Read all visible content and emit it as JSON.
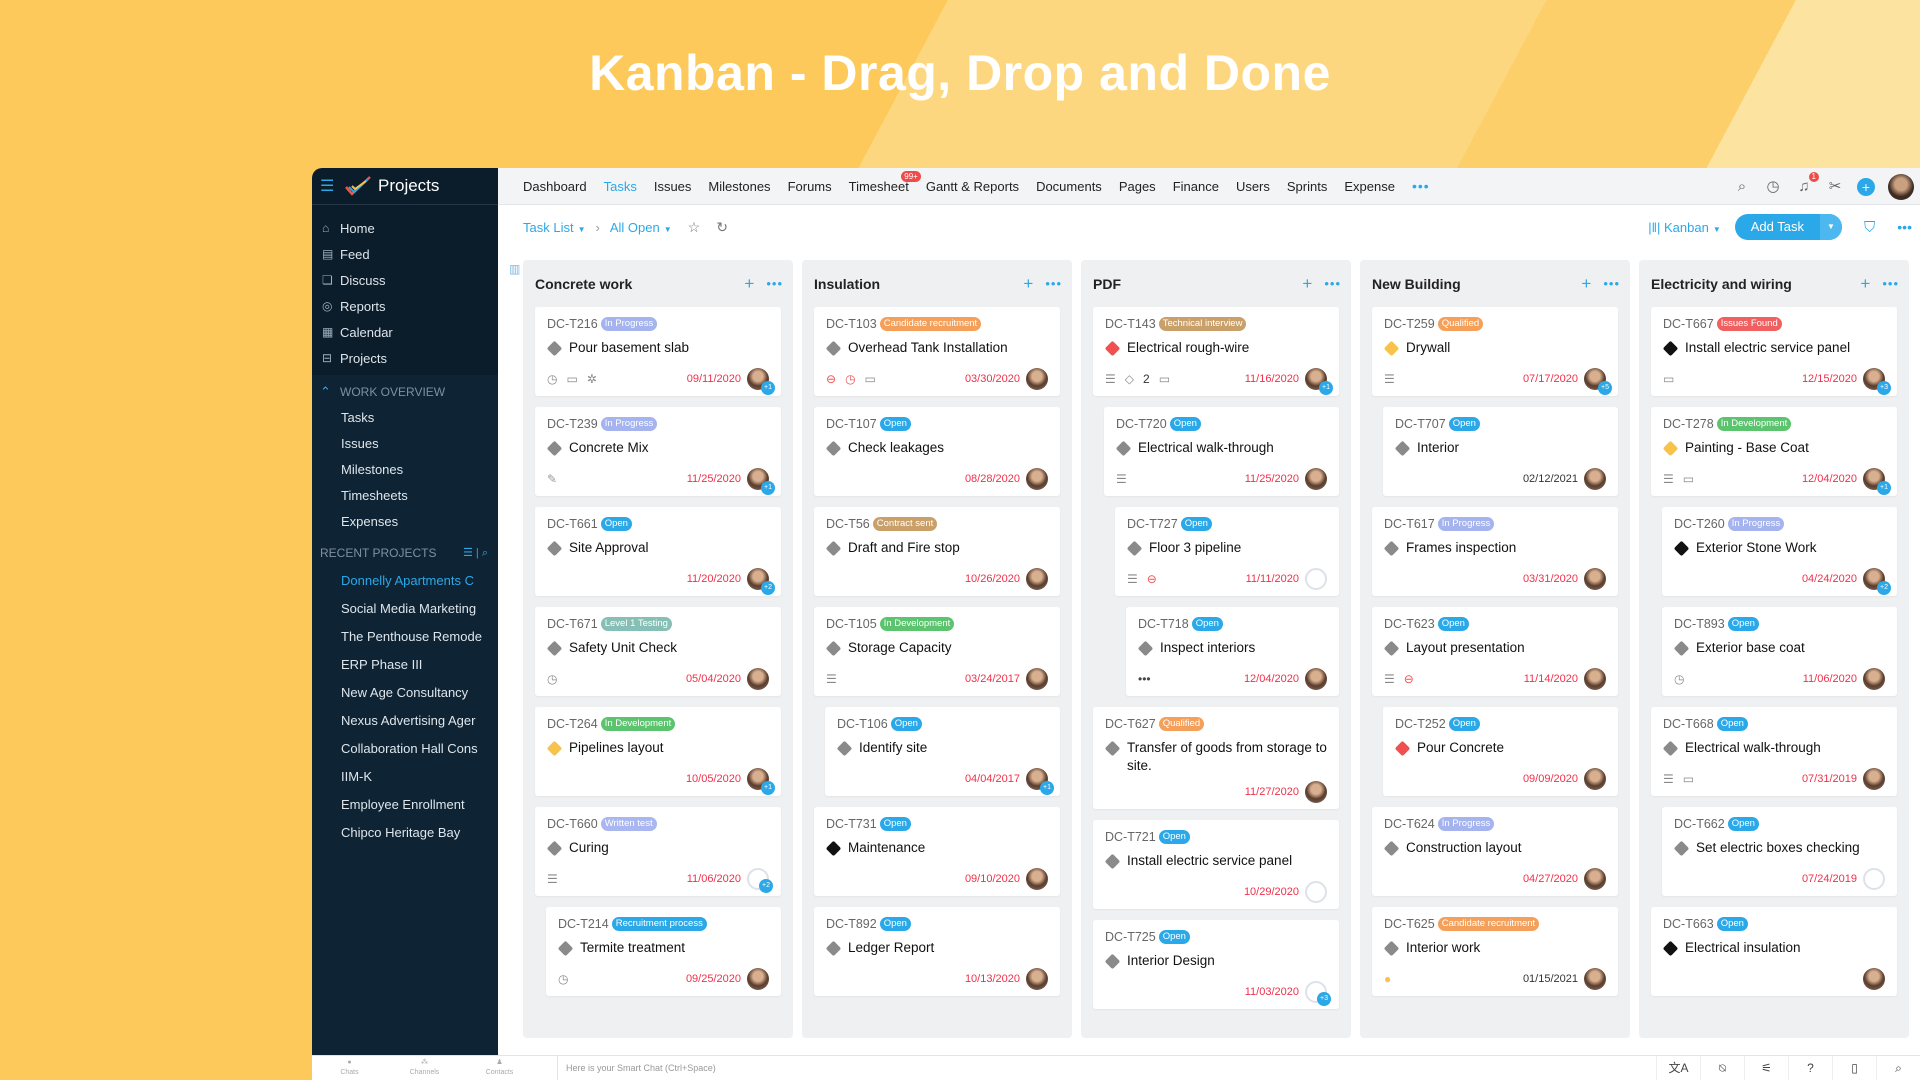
{
  "hero": {
    "title": "Kanban - Drag, Drop and Done"
  },
  "colors": {
    "accent": "#2ba8e8",
    "sidebar": "#0b1c2b",
    "overdue": "#f0304a",
    "background": "#fcc95a"
  },
  "app": {
    "name": "Projects"
  },
  "sidebar": {
    "main": [
      {
        "label": "Home",
        "icon": "home-icon"
      },
      {
        "label": "Feed",
        "icon": "feed-icon"
      },
      {
        "label": "Discuss",
        "icon": "discuss-icon"
      },
      {
        "label": "Reports",
        "icon": "reports-icon"
      },
      {
        "label": "Calendar",
        "icon": "calendar-icon"
      },
      {
        "label": "Projects",
        "icon": "briefcase-icon"
      }
    ],
    "work_overview": {
      "label": "WORK OVERVIEW",
      "items": [
        "Tasks",
        "Issues",
        "Milestones",
        "Timesheets",
        "Expenses"
      ]
    },
    "recent": {
      "label": "RECENT PROJECTS",
      "items": [
        "Donnelly Apartments C",
        "Social Media Marketing",
        "The Penthouse Remode",
        "ERP Phase III",
        "New Age Consultancy",
        "Nexus Advertising Ager",
        "Collaboration Hall Cons",
        "IIM-K",
        "Employee Enrollment",
        "Chipco Heritage Bay"
      ],
      "active_index": 0
    }
  },
  "nav": {
    "items": [
      "Dashboard",
      "Tasks",
      "Issues",
      "Milestones",
      "Forums",
      "Timesheet",
      "Gantt & Reports",
      "Documents",
      "Pages",
      "Finance",
      "Users",
      "Sprints",
      "Expense"
    ],
    "active_index": 1,
    "timesheet_badge": "99+",
    "notification_count": "1"
  },
  "toolbar": {
    "view": "Task List",
    "filter": "All Open",
    "layout": "Kanban",
    "add_task": "Add Task"
  },
  "bottom": {
    "chats": "Chats",
    "channels": "Channels",
    "contacts": "Contacts",
    "smart_chat_placeholder": "Here is your Smart Chat (Ctrl+Space)"
  },
  "statuses": {
    "In Progress": "#a5b3ee",
    "Open": "#2ba8e8",
    "Candidate recruitment": "#f5a05a",
    "Contract sent": "#c9a06a",
    "In Development": "#5cc46e",
    "Level 1 Testing": "#86bfb5",
    "Written test": "#a9b6f0",
    "Recruitment process": "#2ba8e8",
    "Technical interview": "#c9a06a",
    "Qualified": "#f5a05a",
    "Issues Found": "#f06060"
  },
  "priorities": {
    "none": "#8a8a8a",
    "medium": "#f7c34a",
    "high": "#f05050",
    "critical": "#111111"
  },
  "board": {
    "columns": [
      {
        "title": "Concrete work",
        "cards": [
          {
            "id": "DC-T216",
            "status": "In Progress",
            "title": "Pour basement slab",
            "priority": "none",
            "due": "09/11/2020",
            "overdue": true,
            "icons": [
              "timer",
              "comment",
              "bug"
            ],
            "extra": "+1",
            "indent": 0
          },
          {
            "id": "DC-T239",
            "status": "In Progress",
            "title": "Concrete Mix",
            "priority": "none",
            "due": "11/25/2020",
            "overdue": true,
            "icons": [
              "attachment"
            ],
            "extra": "+1",
            "indent": 0
          },
          {
            "id": "DC-T661",
            "status": "Open",
            "title": "Site Approval",
            "priority": "none",
            "due": "11/20/2020",
            "overdue": true,
            "icons": [],
            "extra": "+2",
            "indent": 0
          },
          {
            "id": "DC-T671",
            "status": "Level 1 Testing",
            "title": "Safety Unit Check",
            "priority": "none",
            "due": "05/04/2020",
            "overdue": true,
            "icons": [
              "timer"
            ],
            "indent": 0
          },
          {
            "id": "DC-T264",
            "status": "In Development",
            "title": "Pipelines layout",
            "priority": "medium",
            "due": "10/05/2020",
            "overdue": true,
            "icons": [],
            "extra": "+1",
            "indent": 0
          },
          {
            "id": "DC-T660",
            "status": "Written test",
            "title": "Curing",
            "priority": "none",
            "due": "11/06/2020",
            "overdue": true,
            "icons": [
              "subtask"
            ],
            "extra": "+2",
            "empty_avatar": true,
            "indent": 0
          },
          {
            "id": "DC-T214",
            "status": "Recruitment process",
            "title": "Termite treatment",
            "priority": "none",
            "due": "09/25/2020",
            "overdue": true,
            "icons": [
              "timer"
            ],
            "indent": 1
          }
        ]
      },
      {
        "title": "Insulation",
        "cards": [
          {
            "id": "DC-T103",
            "status": "Candidate recruitment",
            "title": "Overhead Tank Installation",
            "priority": "none",
            "due": "03/30/2020",
            "overdue": true,
            "icons": [
              "blocked",
              "timer-red",
              "comment"
            ],
            "indent": 0
          },
          {
            "id": "DC-T107",
            "status": "Open",
            "title": "Check leakages",
            "priority": "none",
            "due": "08/28/2020",
            "overdue": true,
            "icons": [],
            "indent": 0
          },
          {
            "id": "DC-T56",
            "status": "Contract sent",
            "title": "Draft and Fire stop",
            "priority": "none",
            "due": "10/26/2020",
            "overdue": true,
            "icons": [],
            "indent": 0
          },
          {
            "id": "DC-T105",
            "status": "In Development",
            "title": "Storage Capacity",
            "priority": "none",
            "due": "03/24/2017",
            "overdue": true,
            "icons": [
              "subtask"
            ],
            "indent": 0
          },
          {
            "id": "DC-T106",
            "status": "Open",
            "title": "Identify site",
            "priority": "none",
            "due": "04/04/2017",
            "overdue": true,
            "icons": [],
            "extra": "+1",
            "indent": 1
          },
          {
            "id": "DC-T731",
            "status": "Open",
            "title": "Maintenance",
            "priority": "critical",
            "due": "09/10/2020",
            "overdue": true,
            "icons": [],
            "indent": 0
          },
          {
            "id": "DC-T892",
            "status": "Open",
            "title": "Ledger Report",
            "priority": "none",
            "due": "10/13/2020",
            "overdue": true,
            "icons": [],
            "indent": 0
          }
        ]
      },
      {
        "title": "PDF",
        "cards": [
          {
            "id": "DC-T143",
            "status": "Technical interview",
            "title": "Electrical rough-wire",
            "priority": "high",
            "due": "11/16/2020",
            "overdue": true,
            "icons": [
              "subtask",
              "tag",
              "comment"
            ],
            "tag_count": "2",
            "extra": "+1",
            "indent": 0
          },
          {
            "id": "DC-T720",
            "status": "Open",
            "title": "Electrical walk-through",
            "priority": "none",
            "due": "11/25/2020",
            "overdue": true,
            "icons": [
              "subtask"
            ],
            "indent": 1
          },
          {
            "id": "DC-T727",
            "status": "Open",
            "title": "Floor 3 pipeline",
            "priority": "none",
            "due": "11/11/2020",
            "overdue": true,
            "icons": [
              "subtask",
              "blocked"
            ],
            "empty_avatar": true,
            "indent": 2
          },
          {
            "id": "DC-T718",
            "status": "Open",
            "title": "Inspect interiors",
            "priority": "none",
            "due": "12/04/2020",
            "overdue": true,
            "icons": [
              "more"
            ],
            "indent": 3
          },
          {
            "id": "DC-T627",
            "status": "Qualified",
            "title": "Transfer of goods from storage to site.",
            "priority": "none",
            "due": "11/27/2020",
            "overdue": true,
            "icons": [],
            "indent": 0
          },
          {
            "id": "DC-T721",
            "status": "Open",
            "title": "Install electric service panel",
            "priority": "none",
            "due": "10/29/2020",
            "overdue": true,
            "icons": [],
            "empty_avatar": true,
            "indent": 0
          },
          {
            "id": "DC-T725",
            "status": "Open",
            "title": "Interior Design",
            "priority": "none",
            "due": "11/03/2020",
            "overdue": true,
            "icons": [],
            "extra": "+3",
            "empty_avatar": true,
            "indent": 0
          }
        ]
      },
      {
        "title": "New Building",
        "cards": [
          {
            "id": "DC-T259",
            "status": "Qualified",
            "title": "Drywall",
            "priority": "medium",
            "due": "07/17/2020",
            "overdue": true,
            "icons": [
              "subtask"
            ],
            "extra": "+5",
            "indent": 0
          },
          {
            "id": "DC-T707",
            "status": "Open",
            "title": "Interior",
            "priority": "none",
            "due": "02/12/2021",
            "overdue": false,
            "icons": [],
            "indent": 1
          },
          {
            "id": "DC-T617",
            "status": "In Progress",
            "title": "Frames inspection",
            "priority": "none",
            "due": "03/31/2020",
            "overdue": true,
            "icons": [],
            "indent": 0
          },
          {
            "id": "DC-T623",
            "status": "Open",
            "title": "Layout presentation",
            "priority": "none",
            "due": "11/14/2020",
            "overdue": true,
            "icons": [
              "subtask",
              "blocked"
            ],
            "indent": 0
          },
          {
            "id": "DC-T252",
            "status": "Open",
            "title": "Pour Concrete",
            "priority": "high",
            "due": "09/09/2020",
            "overdue": true,
            "icons": [],
            "indent": 1
          },
          {
            "id": "DC-T624",
            "status": "In Progress",
            "title": "Construction layout",
            "priority": "none",
            "due": "04/27/2020",
            "overdue": true,
            "icons": [],
            "indent": 0
          },
          {
            "id": "DC-T625",
            "status": "Candidate recruitment",
            "title": "Interior work",
            "priority": "none",
            "due": "01/15/2021",
            "overdue": false,
            "icons": [
              "on-hold"
            ],
            "indent": 0
          }
        ]
      },
      {
        "title": "Electricity and wiring",
        "cards": [
          {
            "id": "DC-T667",
            "status": "Issues Found",
            "title": "Install electric service panel",
            "priority": "critical",
            "due": "12/15/2020",
            "overdue": true,
            "icons": [
              "comment"
            ],
            "extra": "+3",
            "indent": 0
          },
          {
            "id": "DC-T278",
            "status": "In Development",
            "title": "Painting - Base Coat",
            "priority": "medium",
            "due": "12/04/2020",
            "overdue": true,
            "icons": [
              "subtask",
              "comment"
            ],
            "extra": "+1",
            "indent": 0
          },
          {
            "id": "DC-T260",
            "status": "In Progress",
            "title": "Exterior Stone Work",
            "priority": "critical",
            "due": "04/24/2020",
            "overdue": true,
            "icons": [],
            "extra": "+2",
            "indent": 1
          },
          {
            "id": "DC-T893",
            "status": "Open",
            "title": "Exterior base coat",
            "priority": "none",
            "due": "11/06/2020",
            "overdue": true,
            "icons": [
              "timer"
            ],
            "indent": 1
          },
          {
            "id": "DC-T668",
            "status": "Open",
            "title": "Electrical walk-through",
            "priority": "none",
            "due": "07/31/2019",
            "overdue": true,
            "icons": [
              "subtask",
              "comment"
            ],
            "indent": 0
          },
          {
            "id": "DC-T662",
            "status": "Open",
            "title": "Set electric boxes checking",
            "priority": "none",
            "due": "07/24/2019",
            "overdue": true,
            "icons": [],
            "empty_avatar": true,
            "indent": 1
          },
          {
            "id": "DC-T663",
            "status": "Open",
            "title": "Electrical insulation",
            "priority": "critical",
            "icons": [],
            "indent": 0
          }
        ]
      }
    ]
  }
}
